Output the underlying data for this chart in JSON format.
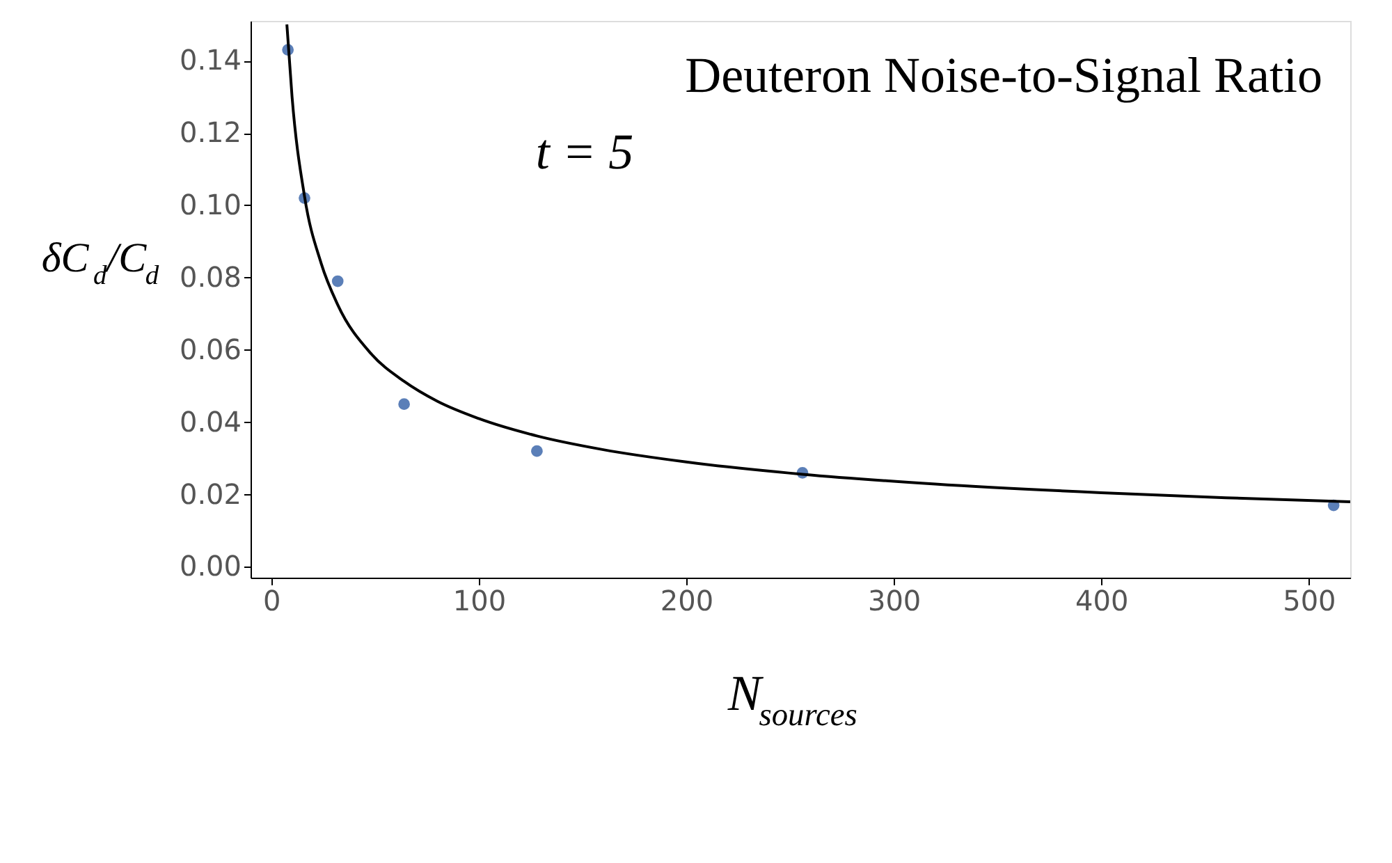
{
  "chart_data": {
    "type": "scatter",
    "title": "Deuteron Noise-to-Signal Ratio",
    "annotations": [
      "t = 5"
    ],
    "xlabel": "N$_{sources}$",
    "ylabel": "δC$_{d}$/C$_{d}$",
    "xlim": [
      -10,
      520
    ],
    "xticks": [
      0,
      100,
      200,
      300,
      400,
      500
    ],
    "ylim": [
      -0.003,
      0.151
    ],
    "yticks": [
      {
        "value": 0,
        "label": "0.00"
      },
      {
        "value": 0.02,
        "label": "0.02"
      },
      {
        "value": 0.04,
        "label": "0.04"
      },
      {
        "value": 0.06,
        "label": "0.06"
      },
      {
        "value": 0.08,
        "label": "0.08"
      },
      {
        "value": 0.1,
        "label": "0.10"
      },
      {
        "value": 0.12,
        "label": "0.12"
      },
      {
        "value": 0.14,
        "label": "0.14"
      }
    ],
    "grid": false,
    "series": [
      {
        "color": "#5b7fb8",
        "marker": "circle",
        "x": [
          8,
          16,
          32,
          64,
          128,
          256,
          512
        ],
        "values": [
          0.143,
          0.102,
          0.079,
          0.045,
          0.032,
          0.026,
          0.017
        ]
      },
      {
        "type": "line",
        "color": "#000000",
        "line_style": "solid",
        "marker": "none",
        "x": [
          7.5,
          10,
          16,
          24,
          32,
          48,
          64,
          80,
          100,
          128,
          160,
          200,
          256,
          320,
          400,
          460,
          520
        ],
        "values": [
          0.15,
          0.13,
          0.1025,
          0.084,
          0.0725,
          0.059,
          0.0513,
          0.0458,
          0.041,
          0.0362,
          0.0324,
          0.029,
          0.0256,
          0.0229,
          0.0205,
          0.0191,
          0.018
        ]
      }
    ]
  }
}
